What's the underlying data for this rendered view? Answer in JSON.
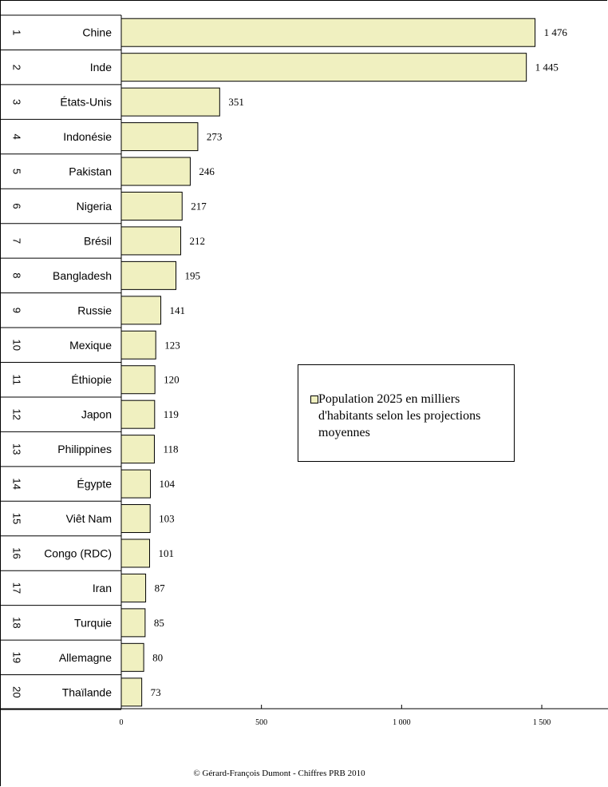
{
  "chart_data": {
    "type": "bar",
    "orientation": "horizontal",
    "ranks": [
      "1",
      "2",
      "3",
      "4",
      "5",
      "6",
      "7",
      "8",
      "9",
      "10",
      "11",
      "12",
      "13",
      "14",
      "15",
      "16",
      "17",
      "18",
      "19",
      "20"
    ],
    "categories": [
      "Chine",
      "Inde",
      "États-Unis",
      "Indonésie",
      "Pakistan",
      "Nigeria",
      "Brésil",
      "Bangladesh",
      "Russie",
      "Mexique",
      "Éthiopie",
      "Japon",
      "Philippines",
      "Égypte",
      "Viêt Nam",
      "Congo (RDC)",
      "Iran",
      "Turquie",
      "Allemagne",
      "Thaïlande"
    ],
    "values": [
      1476,
      1445,
      351,
      273,
      246,
      217,
      212,
      195,
      141,
      123,
      120,
      119,
      118,
      104,
      103,
      101,
      87,
      85,
      80,
      73
    ],
    "value_labels": [
      "1 476",
      "1 445",
      "351",
      "273",
      "246",
      "217",
      "212",
      "195",
      "141",
      "123",
      "120",
      "119",
      "118",
      "104",
      "103",
      "101",
      "87",
      "85",
      "80",
      "73"
    ],
    "xticks": [
      0,
      500,
      1000,
      1500
    ],
    "xtick_labels": [
      "0",
      "500",
      "1 000",
      "1 500"
    ],
    "xlim": [
      0,
      1500
    ],
    "legend": {
      "label": "Population 2025 en milliers d'habitants selon les projections moyennes",
      "placement": "right-center"
    },
    "bar_color": "#f0f0c0",
    "grid": false
  },
  "footer": {
    "copyright": "© Gérard-François Dumont - Chiffres PRB 2010"
  }
}
